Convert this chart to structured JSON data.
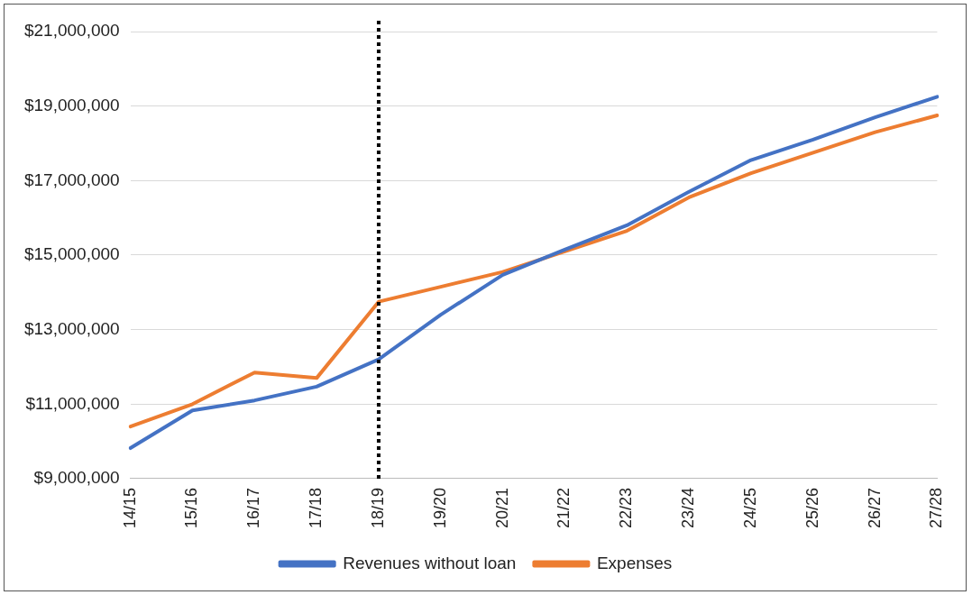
{
  "chart_data": {
    "type": "line",
    "categories": [
      "14/15",
      "15/16",
      "16/17",
      "17/18",
      "18/19",
      "19/20",
      "20/21",
      "21/22",
      "22/23",
      "23/24",
      "24/25",
      "25/26",
      "26/27",
      "27/28"
    ],
    "series": [
      {
        "name": "Revenues without loan",
        "color": "#4472c4",
        "values": [
          9820000,
          10830000,
          11100000,
          11470000,
          12200000,
          13400000,
          14470000,
          15150000,
          15800000,
          16700000,
          17550000,
          18100000,
          18700000,
          19250000
        ]
      },
      {
        "name": "Expenses",
        "color": "#ed7d31",
        "values": [
          10400000,
          11000000,
          11850000,
          11700000,
          13750000,
          14150000,
          14550000,
          15100000,
          15650000,
          16550000,
          17200000,
          17750000,
          18300000,
          18750000
        ]
      }
    ],
    "ylim": [
      9000000,
      21000000
    ],
    "yticks": [
      {
        "value": 9000000,
        "label": "$9,000,000"
      },
      {
        "value": 11000000,
        "label": "$11,000,000"
      },
      {
        "value": 13000000,
        "label": "$13,000,000"
      },
      {
        "value": 15000000,
        "label": "$15,000,000"
      },
      {
        "value": 17000000,
        "label": "$17,000,000"
      },
      {
        "value": 19000000,
        "label": "$19,000,000"
      },
      {
        "value": 21000000,
        "label": "$21,000,000"
      }
    ],
    "grid": "y",
    "legend": "bottom",
    "marker": "none",
    "line_style": "solid",
    "ref_lines": [
      {
        "axis": "x",
        "value": "18/19",
        "color": "#000000",
        "line_style": "dotted"
      }
    ]
  }
}
